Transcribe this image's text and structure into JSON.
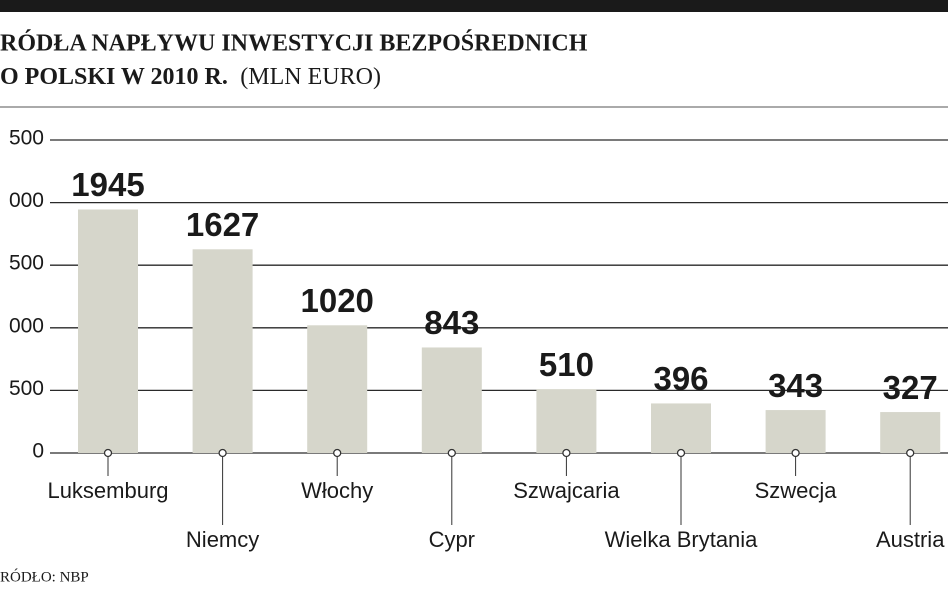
{
  "title": [
    "RÓDŁA NAPŁYWU INWESTYCJI BEZPOŚREDNICH",
    "O POLSKI W 2010 R."
  ],
  "subtitle": "(MLN EURO)",
  "source": "RÓDŁO: NBP",
  "chart_data": {
    "type": "bar",
    "categories": [
      "Luksemburg",
      "Niemcy",
      "Włochy",
      "Cypr",
      "Szwajcaria",
      "Wielka Brytania",
      "Szwecja",
      "Austria"
    ],
    "values": [
      1945,
      1627,
      1020,
      843,
      510,
      396,
      343,
      327
    ],
    "color": "#d6d6cb",
    "ylim": [
      0,
      2500
    ],
    "yticks": [
      0,
      {
        "value": 500,
        "label": "500"
      },
      {
        "value": 1000,
        "label": "000"
      },
      {
        "value": 1500,
        "label": "500"
      },
      {
        "value": 2000,
        "label": "000"
      },
      {
        "value": 2500,
        "label": "500"
      }
    ],
    "grid": true
  }
}
